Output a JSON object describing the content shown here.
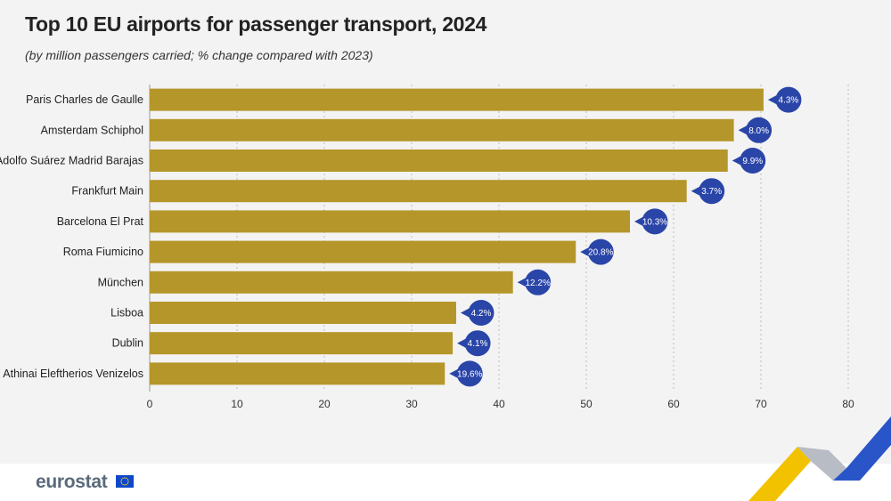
{
  "header": {
    "title": "Top 10 EU airports for passenger transport, 2024",
    "subtitle": "(by million passengers carried; % change compared with 2023)"
  },
  "footer": {
    "logo_text": "eurostat"
  },
  "colors": {
    "bar": "#b5962a",
    "badge": "#2a45a8",
    "grid": "#bdbdbd",
    "footer_bg": "#ffffff"
  },
  "chart_data": {
    "type": "bar",
    "orientation": "horizontal",
    "categories": [
      "Paris Charles de Gaulle",
      "Amsterdam Schiphol",
      "Adolfo Suárez Madrid Barajas",
      "Frankfurt Main",
      "Barcelona El Prat",
      "Roma Fiumicino",
      "München",
      "Lisboa",
      "Dublin",
      "Athinai Eleftherios Venizelos"
    ],
    "values": [
      70.3,
      66.9,
      66.2,
      61.5,
      55.0,
      48.8,
      41.6,
      35.1,
      34.7,
      33.8
    ],
    "change_labels": [
      "4.3%",
      "8.0%",
      "9.9%",
      "3.7%",
      "10.3%",
      "20.8%",
      "12.2%",
      "4.2%",
      "4.1%",
      "19.6%"
    ],
    "xlim": [
      0,
      80
    ],
    "xticks": [
      0,
      10,
      20,
      30,
      40,
      50,
      60,
      70,
      80
    ],
    "grid": true
  }
}
